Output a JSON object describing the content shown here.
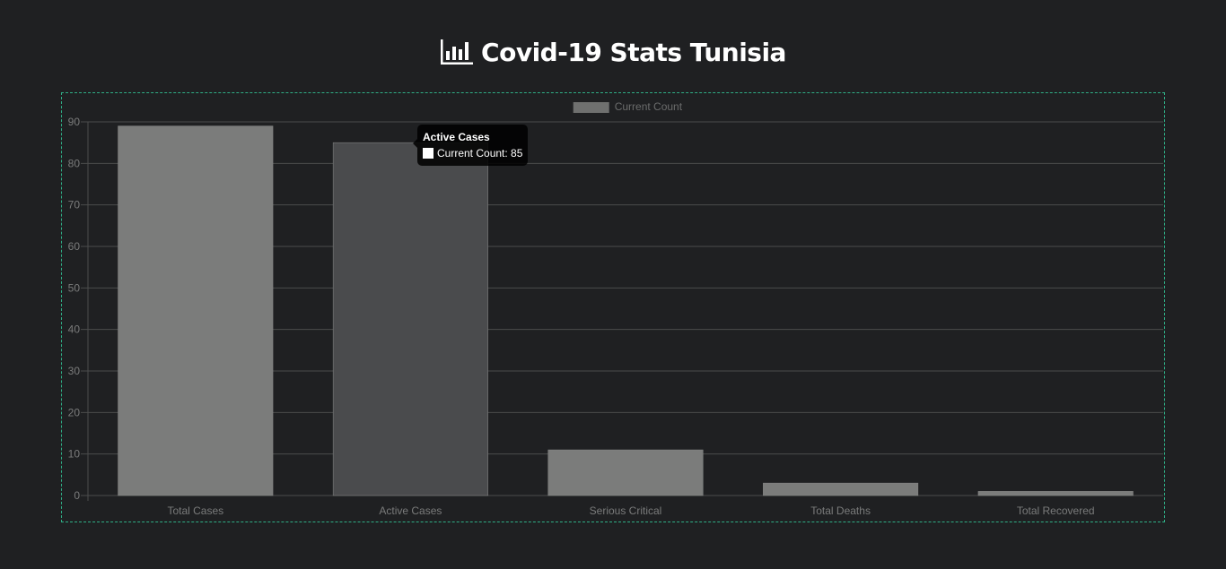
{
  "header": {
    "title": "Covid-19 Stats Tunisia",
    "icon": "bar-chart-icon"
  },
  "colors": {
    "background": "#1f2022",
    "frame_border": "#2fae86",
    "bar_default": "#7b7c7b",
    "bar_hover": "#4a4b4d",
    "legend_swatch": "#6f706f",
    "grid": "#4b4c4c",
    "axis_text": "#7a7b7b"
  },
  "tooltip": {
    "title": "Active Cases",
    "label": "Current Count: 85"
  },
  "chart_data": {
    "type": "bar",
    "title": "",
    "xlabel": "",
    "ylabel": "",
    "categories": [
      "Total Cases",
      "Active Cases",
      "Serious Critical",
      "Total Deaths",
      "Total Recovered"
    ],
    "series": [
      {
        "name": "Current Count",
        "values": [
          89,
          85,
          11,
          3,
          1
        ]
      }
    ],
    "ylim": [
      0,
      90
    ],
    "yticks": [
      0,
      10,
      20,
      30,
      40,
      50,
      60,
      70,
      80,
      90
    ],
    "grid": true,
    "legend_position": "top-center",
    "highlighted_category": "Active Cases"
  }
}
